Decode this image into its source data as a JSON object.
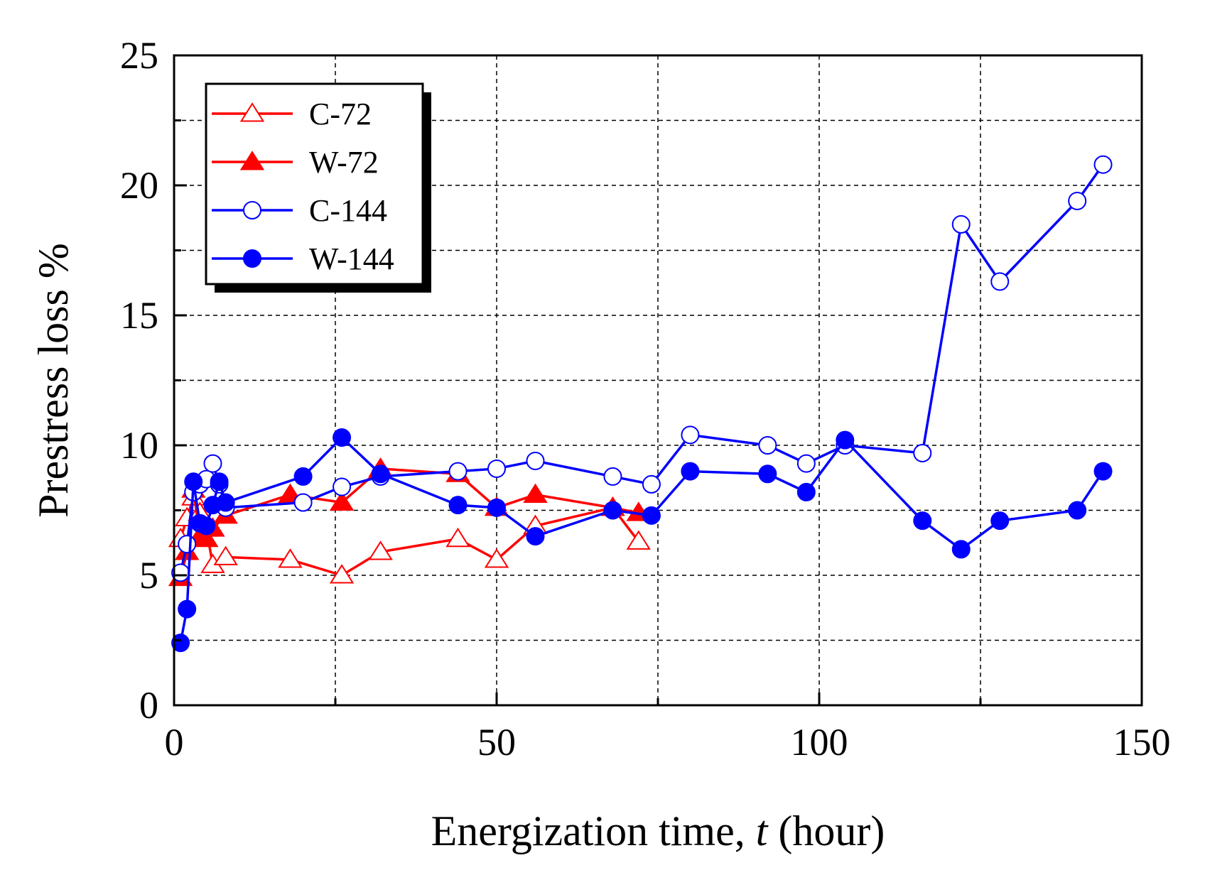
{
  "chart_data": {
    "type": "line",
    "title": "",
    "xlabel_prefix": "Energization time, ",
    "xlabel_var": "t",
    "xlabel_suffix": " (hour)",
    "ylabel": "Prestress loss %",
    "xlim": [
      0,
      150
    ],
    "ylim": [
      0,
      25
    ],
    "xticks": [
      0,
      50,
      100,
      150
    ],
    "yticks": [
      0,
      5,
      10,
      15,
      20,
      25
    ],
    "grid": true,
    "legend_position": "top-left",
    "series": [
      {
        "name": "C-72",
        "color": "#ff0000",
        "marker": "triangle-open",
        "points": [
          [
            1,
            6.4
          ],
          [
            2,
            7.2
          ],
          [
            3,
            8.0
          ],
          [
            4,
            7.4
          ],
          [
            5,
            6.8
          ],
          [
            6,
            5.4
          ],
          [
            8,
            5.7
          ],
          [
            18,
            5.6
          ],
          [
            26,
            5.0
          ],
          [
            32,
            5.9
          ],
          [
            44,
            6.4
          ],
          [
            50,
            5.6
          ],
          [
            56,
            6.9
          ],
          [
            68,
            7.6
          ],
          [
            72,
            6.3
          ]
        ]
      },
      {
        "name": "W-72",
        "color": "#ff0000",
        "marker": "triangle-filled",
        "points": [
          [
            1,
            4.9
          ],
          [
            2,
            5.9
          ],
          [
            3,
            8.3
          ],
          [
            4,
            6.5
          ],
          [
            5,
            6.4
          ],
          [
            6,
            6.8
          ],
          [
            8,
            7.3
          ],
          [
            18,
            8.1
          ],
          [
            26,
            7.8
          ],
          [
            32,
            9.1
          ],
          [
            44,
            8.9
          ],
          [
            50,
            7.6
          ],
          [
            56,
            8.1
          ],
          [
            68,
            7.6
          ],
          [
            72,
            7.4
          ]
        ]
      },
      {
        "name": "C-144",
        "color": "#0000ff",
        "marker": "circle-open",
        "points": [
          [
            1,
            5.1
          ],
          [
            2,
            6.2
          ],
          [
            3,
            8.2
          ],
          [
            4,
            8.5
          ],
          [
            5,
            8.7
          ],
          [
            6,
            9.3
          ],
          [
            7,
            8.5
          ],
          [
            8,
            7.6
          ],
          [
            20,
            7.8
          ],
          [
            26,
            8.4
          ],
          [
            32,
            8.8
          ],
          [
            44,
            9.0
          ],
          [
            50,
            9.1
          ],
          [
            56,
            9.4
          ],
          [
            68,
            8.8
          ],
          [
            74,
            8.5
          ],
          [
            80,
            10.4
          ],
          [
            92,
            10.0
          ],
          [
            98,
            9.3
          ],
          [
            104,
            10.0
          ],
          [
            116,
            9.7
          ],
          [
            122,
            18.5
          ],
          [
            128,
            16.3
          ],
          [
            140,
            19.4
          ],
          [
            144,
            20.8
          ]
        ]
      },
      {
        "name": "W-144",
        "color": "#0000ff",
        "marker": "circle-filled",
        "points": [
          [
            1,
            2.4
          ],
          [
            2,
            3.7
          ],
          [
            3,
            8.6
          ],
          [
            4,
            7.0
          ],
          [
            5,
            6.9
          ],
          [
            6,
            7.7
          ],
          [
            7,
            8.6
          ],
          [
            8,
            7.8
          ],
          [
            20,
            8.8
          ],
          [
            26,
            10.3
          ],
          [
            32,
            8.9
          ],
          [
            44,
            7.7
          ],
          [
            50,
            7.6
          ],
          [
            56,
            6.5
          ],
          [
            68,
            7.5
          ],
          [
            74,
            7.3
          ],
          [
            80,
            9.0
          ],
          [
            92,
            8.9
          ],
          [
            98,
            8.2
          ],
          [
            104,
            10.2
          ],
          [
            116,
            7.1
          ],
          [
            122,
            6.0
          ],
          [
            128,
            7.1
          ],
          [
            140,
            7.5
          ],
          [
            144,
            9.0
          ]
        ]
      }
    ]
  }
}
